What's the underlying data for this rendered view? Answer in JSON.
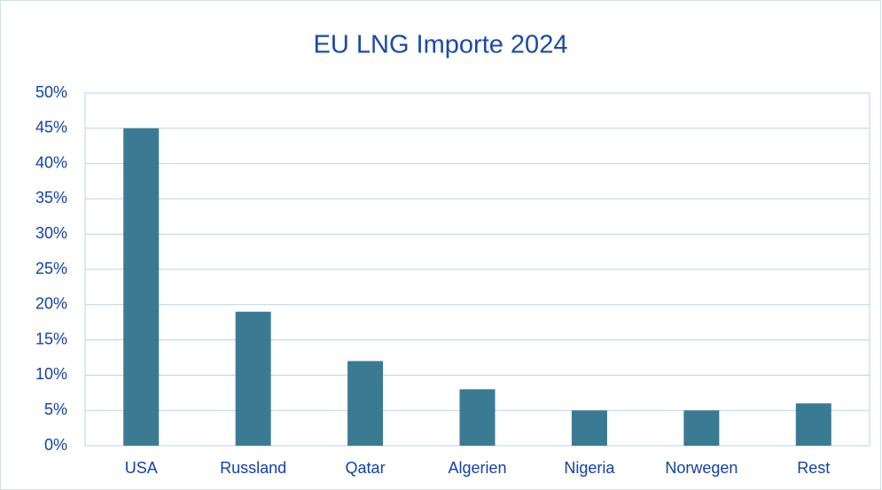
{
  "chart_data": {
    "type": "bar",
    "title": "EU LNG Importe 2024",
    "categories": [
      "USA",
      "Russland",
      "Qatar",
      "Algerien",
      "Nigeria",
      "Norwegen",
      "Rest"
    ],
    "values": [
      45,
      19,
      12,
      8,
      5,
      5,
      6
    ],
    "color": "#3b7a93",
    "ylim": [
      0,
      50
    ],
    "yticks": [
      {
        "value": 0,
        "label": "0%"
      },
      {
        "value": 5,
        "label": "5%"
      },
      {
        "value": 10,
        "label": "10%"
      },
      {
        "value": 15,
        "label": "15%"
      },
      {
        "value": 20,
        "label": "20%"
      },
      {
        "value": 25,
        "label": "25%"
      },
      {
        "value": 30,
        "label": "30%"
      },
      {
        "value": 35,
        "label": "35%"
      },
      {
        "value": 40,
        "label": "40%"
      },
      {
        "value": 45,
        "label": "45%"
      },
      {
        "value": 50,
        "label": "50%"
      }
    ],
    "grid": true
  }
}
